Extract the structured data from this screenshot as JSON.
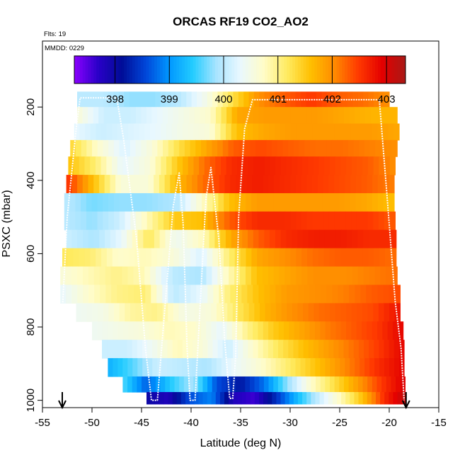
{
  "chart_data": {
    "type": "heatmap",
    "title": "ORCAS RF19 CO2_AO2",
    "top_left_note": "Flts: 19",
    "panel_note": "MMDD: 0229",
    "xlabel": "Latitude (deg N)",
    "ylabel": "PSXC (mbar)",
    "xlim": [
      -55,
      -15
    ],
    "ylim": [
      1020,
      20
    ],
    "x_ticks": [
      -55,
      -50,
      -45,
      -40,
      -35,
      -30,
      -25,
      -20,
      -15
    ],
    "x_tick_labels": [
      "-55",
      "-50",
      "-45",
      "-40",
      "-35",
      "-30",
      "-25",
      "-20",
      "-15"
    ],
    "y_ticks": [
      200,
      400,
      600,
      800,
      1000
    ],
    "y_tick_labels": [
      "200",
      "400",
      "600",
      "800",
      "1000"
    ],
    "colorbar": {
      "range": [
        397.25,
        403.35
      ],
      "ticks": [
        398,
        399,
        400,
        401,
        402,
        403
      ],
      "tick_labels": [
        "398",
        "399",
        "400",
        "401",
        "402",
        "403"
      ],
      "colors": [
        "#8b00ff",
        "#2a00c8",
        "#000c96",
        "#0045d8",
        "#0096ff",
        "#22ccff",
        "#a8e4ff",
        "#e9f8ff",
        "#fffcc8",
        "#ffeb60",
        "#ffbf00",
        "#ff8a00",
        "#ff3a00",
        "#e40000",
        "#a81a16"
      ]
    },
    "arrows_at_latitude": [
      -53,
      -18.3
    ],
    "grid": false,
    "layers": [
      {
        "p": 180,
        "x0": -51.5,
        "x1": -20.0,
        "vals": [
          400.0,
          400.0,
          399.8,
          399.8,
          400.0,
          400.5,
          401.3,
          402.0,
          402.3,
          402.5,
          402.3,
          402.2,
          402.0
        ]
      },
      {
        "p": 220,
        "x0": -51.5,
        "x1": -19.2,
        "vals": [
          400.6,
          400.1,
          400.1,
          400.3,
          400.5,
          400.7,
          401.8,
          401.9,
          401.9,
          401.9,
          401.8,
          401.7,
          401.7
        ]
      },
      {
        "p": 270,
        "x0": -51.8,
        "x1": -19.0,
        "vals": [
          400.3,
          400.1,
          400.2,
          400.3,
          400.5,
          400.6,
          401.6,
          401.8,
          401.9,
          401.9,
          401.9,
          401.9,
          401.8
        ]
      },
      {
        "p": 310,
        "x0": -52.2,
        "x1": -19.2,
        "vals": [
          401.4,
          400.7,
          400.2,
          400.6,
          401.3,
          401.8,
          402.3,
          402.4,
          402.3,
          402.2,
          402.2,
          402.1,
          402.0
        ]
      },
      {
        "p": 360,
        "x0": -52.4,
        "x1": -19.4,
        "vals": [
          401.6,
          401.1,
          400.3,
          400.6,
          401.5,
          402.2,
          402.6,
          402.7,
          402.6,
          402.5,
          402.4,
          402.3,
          402.0
        ]
      },
      {
        "p": 410,
        "x0": -52.6,
        "x1": -19.5,
        "vals": [
          402.6,
          401.6,
          400.6,
          400.6,
          401.6,
          402.2,
          402.6,
          402.7,
          402.6,
          402.5,
          402.4,
          402.3,
          402.1
        ]
      },
      {
        "p": 460,
        "x0": -52.8,
        "x1": -19.5,
        "vals": [
          400.0,
          399.7,
          399.8,
          399.8,
          399.9,
          400.7,
          401.6,
          401.9,
          401.9,
          401.9,
          401.9,
          401.8,
          401.6
        ]
      },
      {
        "p": 510,
        "x0": -52.8,
        "x1": -19.4,
        "vals": [
          400.0,
          399.8,
          400.1,
          400.8,
          401.5,
          401.6,
          402.3,
          402.6,
          402.6,
          402.5,
          402.5,
          402.5,
          402.3
        ]
      },
      {
        "p": 560,
        "x0": -52.6,
        "x1": -19.3,
        "vals": [
          400.1,
          399.9,
          400.3,
          401.2,
          400.4,
          400.8,
          401.8,
          402.3,
          402.6,
          402.7,
          402.7,
          402.6,
          402.6
        ]
      },
      {
        "p": 610,
        "x0": -53.0,
        "x1": -19.3,
        "vals": [
          401.2,
          401.1,
          400.7,
          400.8,
          400.6,
          400.2,
          401.1,
          401.8,
          402.0,
          402.2,
          402.3,
          402.3,
          402.2
        ]
      },
      {
        "p": 660,
        "x0": -53.2,
        "x1": -19.2,
        "vals": [
          400.6,
          400.8,
          401.0,
          400.8,
          400.0,
          399.9,
          400.8,
          401.6,
          401.8,
          402.0,
          402.0,
          402.1,
          402.2
        ]
      },
      {
        "p": 710,
        "x0": -53.2,
        "x1": -18.9,
        "vals": [
          400.3,
          400.7,
          401.0,
          401.1,
          400.0,
          400.3,
          401.1,
          401.6,
          401.9,
          402.0,
          402.1,
          402.3,
          402.4
        ]
      },
      {
        "p": 760,
        "x0": -51.6,
        "x1": -18.9,
        "vals": [
          400.4,
          400.5,
          400.9,
          401.0,
          400.5,
          400.6,
          401.2,
          401.7,
          402.0,
          402.2,
          402.3,
          402.4,
          402.8
        ]
      },
      {
        "p": 810,
        "x0": -50.0,
        "x1": -18.6,
        "vals": [
          400.4,
          400.5,
          400.6,
          400.8,
          400.7,
          400.3,
          401.0,
          401.5,
          401.8,
          402.1,
          402.3,
          402.5,
          402.9
        ]
      },
      {
        "p": 860,
        "x0": -49.0,
        "x1": -18.5,
        "vals": [
          400.1,
          400.1,
          400.4,
          400.8,
          400.6,
          400.1,
          400.7,
          401.2,
          401.6,
          401.9,
          402.2,
          402.5,
          402.9
        ]
      },
      {
        "p": 910,
        "x0": -48.4,
        "x1": -18.5,
        "vals": [
          399.2,
          399.6,
          400.1,
          400.0,
          399.9,
          400.3,
          400.6,
          401.0,
          401.4,
          401.8,
          402.2,
          402.6,
          402.9
        ]
      },
      {
        "p": 960,
        "x0": -46.9,
        "x1": -18.4,
        "vals": [
          399.6,
          398.7,
          399.4,
          399.9,
          398.6,
          398.2,
          398.8,
          399.8,
          400.7,
          401.3,
          401.9,
          402.5,
          403.0
        ]
      },
      {
        "p": 995,
        "x0": -44.5,
        "x1": -18.3,
        "vals": [
          398.0,
          397.8,
          398.6,
          398.9,
          397.8,
          397.6,
          398.4,
          399.3,
          400.1,
          400.8,
          401.6,
          402.6,
          403.2
        ]
      }
    ],
    "flight_track_latitude_pressure": [
      [
        -53.0,
        760
      ],
      [
        -52.5,
        500
      ],
      [
        -51.6,
        260
      ],
      [
        -51.2,
        175
      ],
      [
        -47.5,
        175
      ],
      [
        -46.8,
        290
      ],
      [
        -45.5,
        560
      ],
      [
        -44.6,
        860
      ],
      [
        -44.0,
        1000
      ],
      [
        -43.4,
        1000
      ],
      [
        -42.8,
        800
      ],
      [
        -41.8,
        470
      ],
      [
        -41.2,
        380
      ],
      [
        -40.8,
        520
      ],
      [
        -40.4,
        860
      ],
      [
        -40.1,
        1000
      ],
      [
        -39.6,
        1000
      ],
      [
        -39.0,
        700
      ],
      [
        -38.5,
        450
      ],
      [
        -38.0,
        365
      ],
      [
        -37.2,
        560
      ],
      [
        -36.6,
        840
      ],
      [
        -36.1,
        995
      ],
      [
        -35.8,
        995
      ],
      [
        -35.5,
        880
      ],
      [
        -35.2,
        500
      ],
      [
        -34.6,
        260
      ],
      [
        -33.8,
        180
      ],
      [
        -21.0,
        180
      ],
      [
        -20.2,
        450
      ],
      [
        -19.4,
        730
      ],
      [
        -18.8,
        860
      ],
      [
        -18.5,
        1000
      ]
    ]
  }
}
